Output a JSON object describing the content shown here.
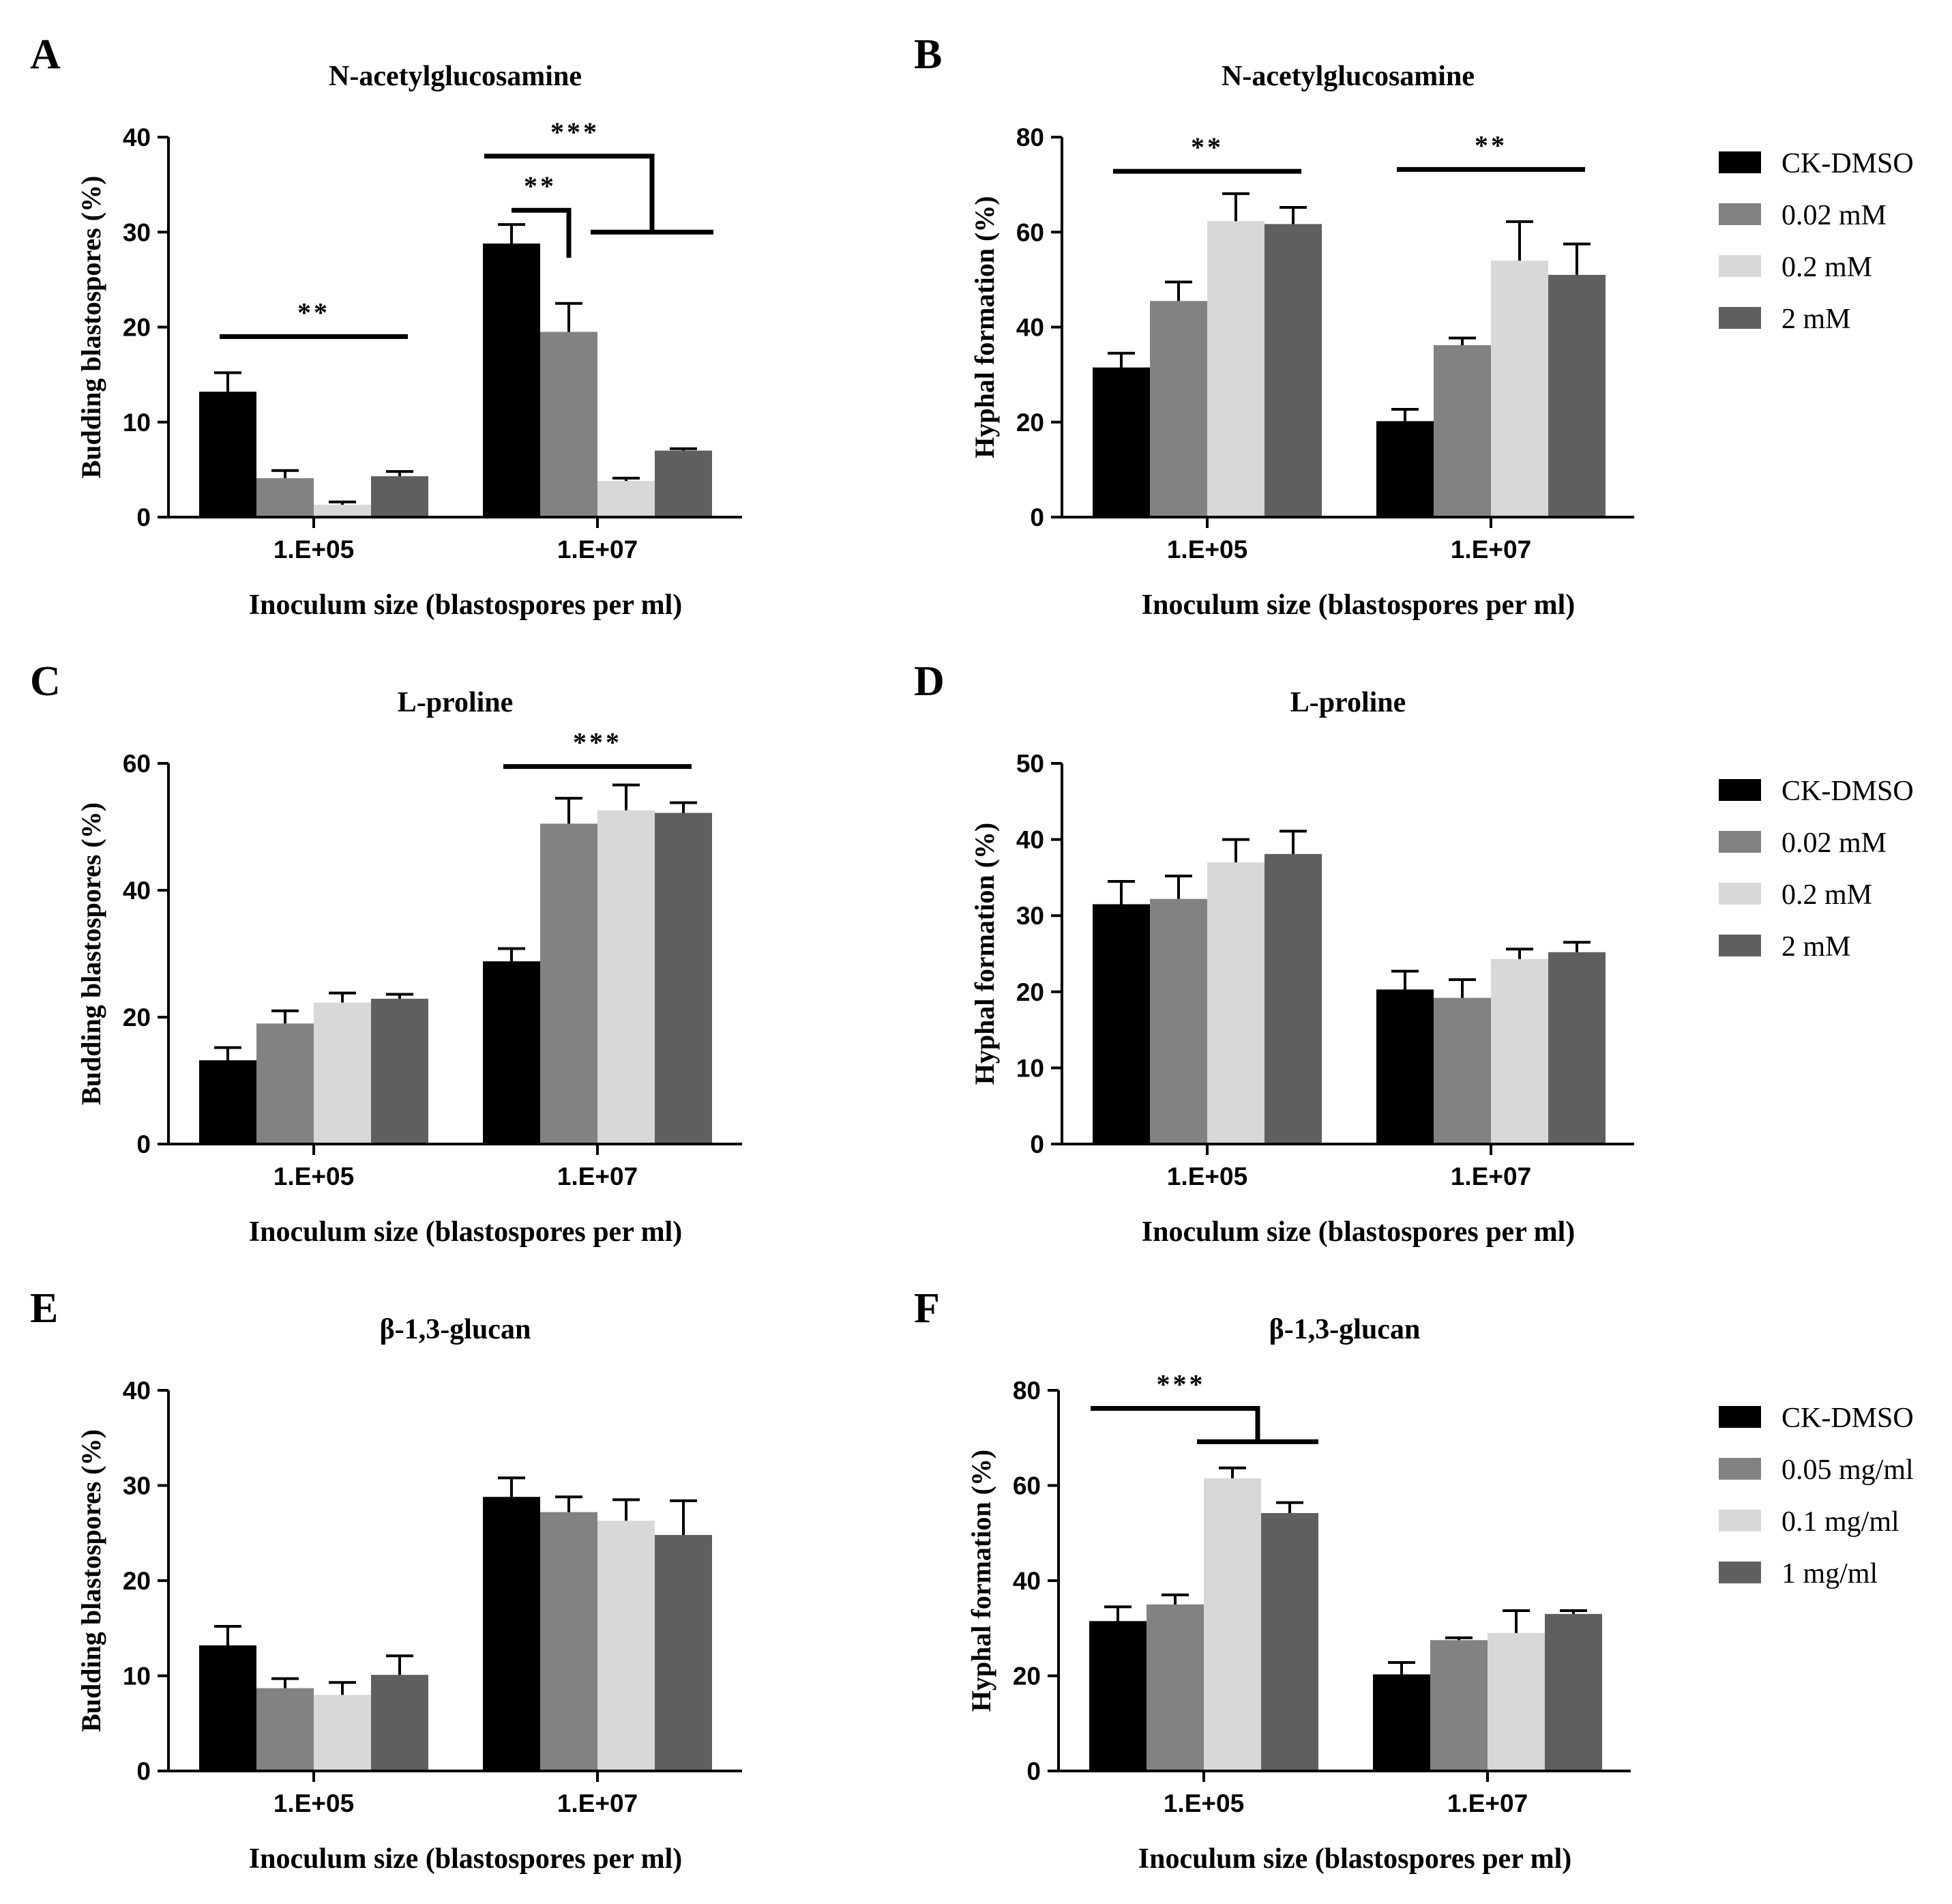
{
  "figure": {
    "category_axis_label": "Inoculum size (blastospores per ml)",
    "budding_ylabel": "Budding blastospores (%)",
    "hyphal_ylabel": "Hyphal formation (%)"
  },
  "colors": {
    "series": [
      "#000000",
      "#828282",
      "#d8d8d8",
      "#5f5f5f"
    ],
    "axis": "#000000"
  },
  "legends": [
    {
      "panel": "B",
      "entries": [
        "CK-DMSO",
        "0.02 mM",
        "0.2 mM",
        "2 mM"
      ]
    },
    {
      "panel": "D",
      "entries": [
        "CK-DMSO",
        "0.02 mM",
        "0.2 mM",
        "2 mM"
      ]
    },
    {
      "panel": "F",
      "entries": [
        "CK-DMSO",
        "0.05 mg/ml",
        "0.1 mg/ml",
        "1 mg/ml"
      ]
    }
  ],
  "chart_data": [
    {
      "panel": "A",
      "type": "bar",
      "title": "N-acetylglucosamine",
      "xlabel": "Inoculum size (blastospores per ml)",
      "ylabel": "Budding blastospores (%)",
      "categories": [
        "1.E+05",
        "1.E+07"
      ],
      "ylim": [
        0,
        40
      ],
      "yticks": [
        0,
        10,
        20,
        30,
        40
      ],
      "series": [
        {
          "name": "CK-DMSO",
          "values": [
            13.2,
            28.8
          ],
          "errors": [
            2.0,
            2.0
          ]
        },
        {
          "name": "0.02 mM",
          "values": [
            4.1,
            19.5
          ],
          "errors": [
            0.8,
            3.0
          ]
        },
        {
          "name": "0.2 mM",
          "values": [
            1.3,
            3.8
          ],
          "errors": [
            0.3,
            0.3
          ]
        },
        {
          "name": "2 mM",
          "values": [
            4.3,
            7.0
          ],
          "errors": [
            0.5,
            0.2
          ]
        }
      ],
      "significance": [
        {
          "label": "**",
          "group": 0,
          "bracket": "flat",
          "from": 0,
          "to": 3,
          "y": 19.0
        },
        {
          "label": "**",
          "group": 1,
          "bracket": "step",
          "from": 0,
          "to": 1,
          "y": 32.3
        },
        {
          "label": "***",
          "group": 1,
          "bracket": "step-range",
          "from": 0,
          "to": 3,
          "range_from": 2,
          "y": 38.0,
          "y2": 30.0
        }
      ]
    },
    {
      "panel": "B",
      "type": "bar",
      "title": "N-acetylglucosamine",
      "xlabel": "Inoculum size (blastospores per ml)",
      "ylabel": "Hyphal formation (%)",
      "categories": [
        "1.E+05",
        "1.E+07"
      ],
      "ylim": [
        0,
        80
      ],
      "yticks": [
        0,
        20,
        40,
        60,
        80
      ],
      "series": [
        {
          "name": "CK-DMSO",
          "values": [
            31.5,
            20.2
          ],
          "errors": [
            3.0,
            2.5
          ]
        },
        {
          "name": "0.02 mM",
          "values": [
            45.5,
            36.2
          ],
          "errors": [
            4.0,
            1.5
          ]
        },
        {
          "name": "0.2 mM",
          "values": [
            62.3,
            54.0
          ],
          "errors": [
            5.8,
            8.2
          ]
        },
        {
          "name": "2 mM",
          "values": [
            61.7,
            51.0
          ],
          "errors": [
            3.5,
            6.5
          ]
        }
      ],
      "significance": [
        {
          "label": "**",
          "group": 0,
          "bracket": "flat",
          "from": 0,
          "to": 3,
          "y": 72.8
        },
        {
          "label": "**",
          "group": 1,
          "bracket": "flat",
          "from": 0,
          "to": 3,
          "y": 73.2
        }
      ]
    },
    {
      "panel": "C",
      "type": "bar",
      "title": "L-proline",
      "xlabel": "Inoculum size (blastospores per ml)",
      "ylabel": "Budding blastospores (%)",
      "categories": [
        "1.E+05",
        "1.E+07"
      ],
      "ylim": [
        0,
        60
      ],
      "yticks": [
        0,
        20,
        40,
        60
      ],
      "series": [
        {
          "name": "CK-DMSO",
          "values": [
            13.2,
            28.8
          ],
          "errors": [
            2.0,
            2.0
          ]
        },
        {
          "name": "0.02 mM",
          "values": [
            19.0,
            50.5
          ],
          "errors": [
            2.0,
            4.0
          ]
        },
        {
          "name": "0.2 mM",
          "values": [
            22.3,
            52.6
          ],
          "errors": [
            1.5,
            4.0
          ]
        },
        {
          "name": "2 mM",
          "values": [
            22.9,
            52.2
          ],
          "errors": [
            0.7,
            1.6
          ]
        }
      ],
      "significance": [
        {
          "label": "***",
          "group": 1,
          "bracket": "flat",
          "from": 0,
          "to": 3,
          "y": 59.5
        }
      ]
    },
    {
      "panel": "D",
      "type": "bar",
      "title": "L-proline",
      "xlabel": "Inoculum size (blastospores per ml)",
      "ylabel": "Hyphal formation (%)",
      "categories": [
        "1.E+05",
        "1.E+07"
      ],
      "ylim": [
        0,
        50
      ],
      "yticks": [
        0,
        10,
        20,
        30,
        40,
        50
      ],
      "series": [
        {
          "name": "CK-DMSO",
          "values": [
            31.5,
            20.3
          ],
          "errors": [
            3.0,
            2.4
          ]
        },
        {
          "name": "0.02 mM",
          "values": [
            32.2,
            19.2
          ],
          "errors": [
            3.0,
            2.4
          ]
        },
        {
          "name": "0.2 mM",
          "values": [
            37.0,
            24.3
          ],
          "errors": [
            3.0,
            1.3
          ]
        },
        {
          "name": "2 mM",
          "values": [
            38.1,
            25.2
          ],
          "errors": [
            3.0,
            1.3
          ]
        }
      ],
      "significance": []
    },
    {
      "panel": "E",
      "type": "bar",
      "title": "β-1,3-glucan",
      "xlabel": "Inoculum size (blastospores per ml)",
      "ylabel": "Budding blastospores (%)",
      "categories": [
        "1.E+05",
        "1.E+07"
      ],
      "ylim": [
        0,
        40
      ],
      "yticks": [
        0,
        10,
        20,
        30,
        40
      ],
      "series": [
        {
          "name": "CK-DMSO",
          "values": [
            13.2,
            28.8
          ],
          "errors": [
            2.0,
            2.0
          ]
        },
        {
          "name": "0.05 mg/ml",
          "values": [
            8.7,
            27.2
          ],
          "errors": [
            1.0,
            1.6
          ]
        },
        {
          "name": "0.1 mg/ml",
          "values": [
            8.0,
            26.3
          ],
          "errors": [
            1.3,
            2.2
          ]
        },
        {
          "name": "1 mg/ml",
          "values": [
            10.1,
            24.8
          ],
          "errors": [
            2.0,
            3.6
          ]
        }
      ],
      "significance": []
    },
    {
      "panel": "F",
      "type": "bar",
      "title": "β-1,3-glucan",
      "xlabel": "Inoculum size (blastospores per ml)",
      "ylabel": "Hyphal formation (%)",
      "categories": [
        "1.E+05",
        "1.E+07"
      ],
      "ylim": [
        0,
        80
      ],
      "yticks": [
        0,
        20,
        40,
        60,
        80
      ],
      "series": [
        {
          "name": "CK-DMSO",
          "values": [
            31.5,
            20.3
          ],
          "errors": [
            3.0,
            2.5
          ]
        },
        {
          "name": "0.05 mg/ml",
          "values": [
            35.0,
            27.5
          ],
          "errors": [
            2.0,
            0.5
          ]
        },
        {
          "name": "0.1 mg/ml",
          "values": [
            61.5,
            29.0
          ],
          "errors": [
            2.2,
            4.7
          ]
        },
        {
          "name": "1 mg/ml",
          "values": [
            54.2,
            33.0
          ],
          "errors": [
            2.2,
            0.7
          ]
        }
      ],
      "significance": [
        {
          "label": "***",
          "group": 0,
          "bracket": "step-range",
          "from": 0,
          "to": 2,
          "range_from": 2,
          "range_to": 3,
          "y": 76.2,
          "y2": 69.2
        }
      ]
    }
  ]
}
